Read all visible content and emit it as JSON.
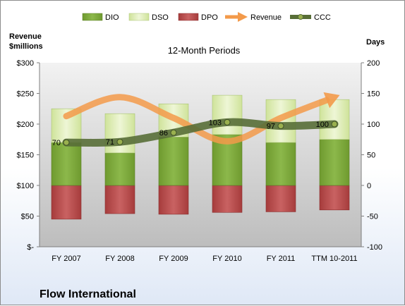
{
  "chart_data": {
    "type": "bar",
    "subtitle": "12-Month Periods",
    "company": "Flow International",
    "categories": [
      "FY 2007",
      "FY 2008",
      "FY 2009",
      "FY 2010",
      "FY 2011",
      "TTM 10-2011"
    ],
    "left_axis": {
      "title_line1": "Revenue",
      "title_line2": "$millions",
      "ylim": [
        0,
        300
      ],
      "ticks": [
        {
          "value": 0,
          "label": "$-"
        },
        {
          "value": 50,
          "label": "$50"
        },
        {
          "value": 100,
          "label": "$100"
        },
        {
          "value": 150,
          "label": "$150"
        },
        {
          "value": 200,
          "label": "$200"
        },
        {
          "value": 250,
          "label": "$250"
        },
        {
          "value": 300,
          "label": "$300"
        }
      ]
    },
    "right_axis": {
      "title": "Days",
      "ylim": [
        -100,
        200
      ],
      "ticks": [
        {
          "value": -100,
          "label": "-100"
        },
        {
          "value": -50,
          "label": "-50"
        },
        {
          "value": 0,
          "label": "0"
        },
        {
          "value": 50,
          "label": "50"
        },
        {
          "value": 100,
          "label": "100"
        },
        {
          "value": 150,
          "label": "150"
        },
        {
          "value": 200,
          "label": "200"
        }
      ]
    },
    "series": [
      {
        "name": "DIO",
        "axis": "right",
        "kind": "stacked-bar",
        "color": "#7aa23a",
        "values": [
          70,
          53,
          79,
          83,
          70,
          75
        ]
      },
      {
        "name": "DSO",
        "axis": "right",
        "kind": "stacked-bar",
        "color": "#d7e9a8",
        "values": [
          55,
          64,
          54,
          64,
          70,
          65
        ]
      },
      {
        "name": "DPO",
        "axis": "right",
        "kind": "negative-bar",
        "color": "#b94a4a",
        "values": [
          -55,
          -46,
          -47,
          -44,
          -43,
          -40
        ]
      },
      {
        "name": "Revenue",
        "axis": "left",
        "kind": "line",
        "color": "#f39a4a",
        "values": [
          213,
          244,
          210,
          172,
          210,
          244
        ]
      },
      {
        "name": "CCC",
        "axis": "right",
        "kind": "line",
        "color": "#586e37",
        "values": [
          70,
          71,
          86,
          103,
          97,
          100
        ]
      }
    ],
    "ccc_labels": [
      "70",
      "71",
      "86",
      "103",
      "97",
      "100"
    ],
    "grid": false,
    "legend_position": "top"
  }
}
